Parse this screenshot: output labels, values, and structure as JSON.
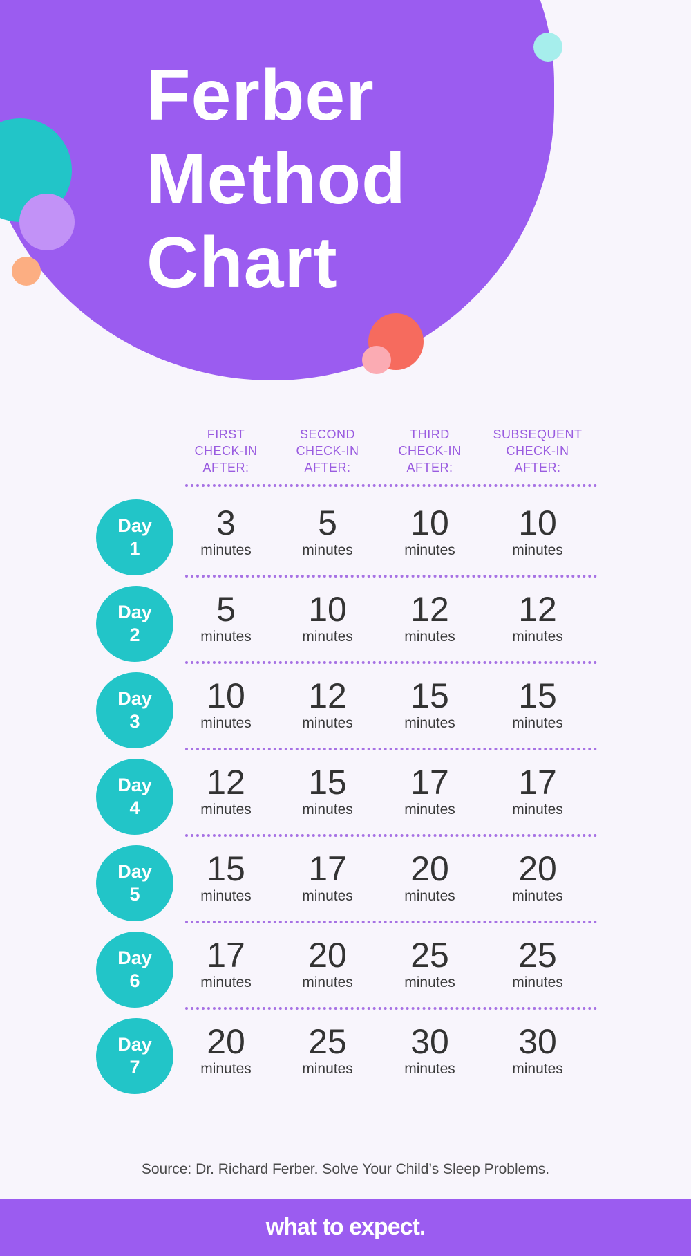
{
  "title": {
    "lines": [
      "Ferber",
      "Method",
      "Chart"
    ]
  },
  "colors": {
    "primary_purple": "#9b5cf0",
    "teal": "#22c5c8",
    "background": "#f8f5fc",
    "header_text": "#9a5ce0"
  },
  "columns": [
    [
      "FIRST",
      "CHECK-IN",
      "AFTER:"
    ],
    [
      "SECOND",
      "CHECK-IN",
      "AFTER:"
    ],
    [
      "THIRD",
      "CHECK-IN",
      "AFTER:"
    ],
    [
      "SUBSEQUENT",
      "CHECK-IN",
      "AFTER:"
    ]
  ],
  "unit": "minutes",
  "rows": [
    {
      "day": [
        "Day",
        "1"
      ],
      "values": [
        "3",
        "5",
        "10",
        "10"
      ]
    },
    {
      "day": [
        "Day",
        "2"
      ],
      "values": [
        "5",
        "10",
        "12",
        "12"
      ]
    },
    {
      "day": [
        "Day",
        "3"
      ],
      "values": [
        "10",
        "12",
        "15",
        "15"
      ]
    },
    {
      "day": [
        "Day",
        "4"
      ],
      "values": [
        "12",
        "15",
        "17",
        "17"
      ]
    },
    {
      "day": [
        "Day",
        "5"
      ],
      "values": [
        "15",
        "17",
        "20",
        "20"
      ]
    },
    {
      "day": [
        "Day",
        "6"
      ],
      "values": [
        "17",
        "20",
        "25",
        "25"
      ]
    },
    {
      "day": [
        "Day",
        "7"
      ],
      "values": [
        "20",
        "25",
        "30",
        "30"
      ]
    }
  ],
  "source": "Source: Dr. Richard Ferber. Solve Your Child’s Sleep Problems.",
  "footer": {
    "logo": "what to expect."
  }
}
